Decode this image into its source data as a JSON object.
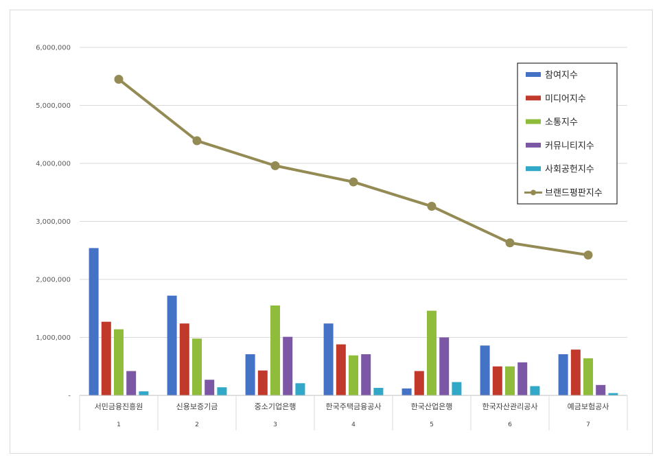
{
  "chart_data": {
    "type": "bar",
    "combo_line_series": "브랜드평판지수",
    "categories": [
      "서민금융진흥원",
      "신용보증기금",
      "중소기업은행",
      "한국주택금융공사",
      "한국산업은행",
      "한국자산관리공사",
      "예금보험공사"
    ],
    "category_numbers": [
      "1",
      "2",
      "3",
      "4",
      "5",
      "6",
      "7"
    ],
    "ylim": [
      0,
      6000000
    ],
    "yticks": [
      "-",
      "1,000,000",
      "2,000,000",
      "3,000,000",
      "4,000,000",
      "5,000,000",
      "6,000,000"
    ],
    "ytick_values": [
      0,
      1000000,
      2000000,
      3000000,
      4000000,
      5000000,
      6000000
    ],
    "grid": true,
    "legend_position": "top-right",
    "series": [
      {
        "name": "참여지수",
        "kind": "bar",
        "color": "#4472c4",
        "values": [
          2540000,
          1720000,
          710000,
          1240000,
          120000,
          860000,
          710000
        ]
      },
      {
        "name": "미디어지수",
        "kind": "bar",
        "color": "#c0392b",
        "values": [
          1270000,
          1240000,
          430000,
          880000,
          420000,
          500000,
          790000
        ]
      },
      {
        "name": "소통지수",
        "kind": "bar",
        "color": "#8fbc3b",
        "values": [
          1140000,
          980000,
          1550000,
          690000,
          1460000,
          500000,
          640000
        ]
      },
      {
        "name": "커뮤니티지수",
        "kind": "bar",
        "color": "#7b57a6",
        "values": [
          420000,
          270000,
          1010000,
          710000,
          1000000,
          570000,
          180000
        ]
      },
      {
        "name": "사회공헌지수",
        "kind": "bar",
        "color": "#31a8c8",
        "values": [
          70000,
          140000,
          210000,
          130000,
          230000,
          160000,
          40000
        ]
      },
      {
        "name": "브랜드평판지수",
        "kind": "line",
        "color": "#948a54",
        "values": [
          5450000,
          4390000,
          3960000,
          3680000,
          3260000,
          2630000,
          2420000
        ]
      }
    ]
  }
}
